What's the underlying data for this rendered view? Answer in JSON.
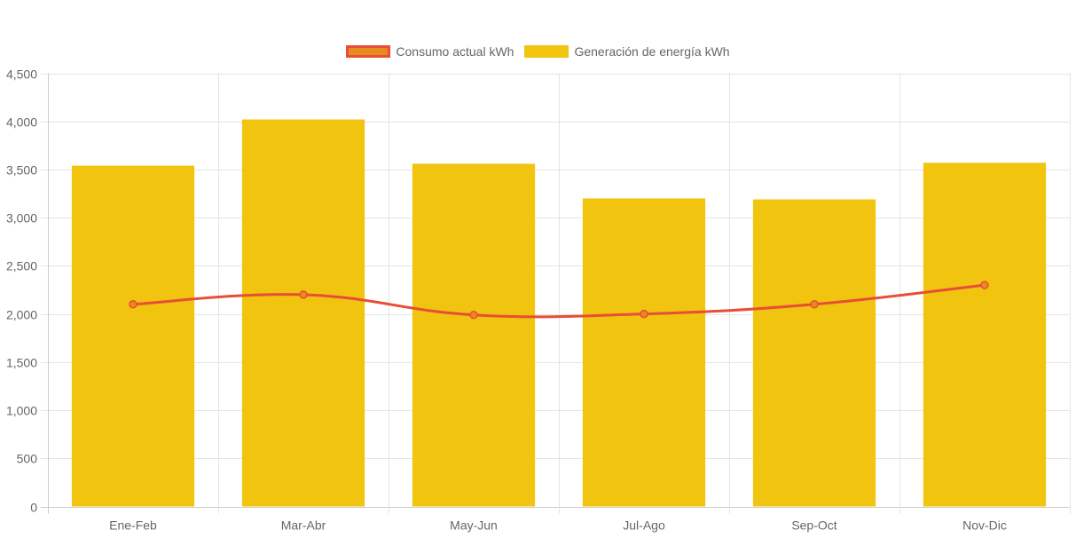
{
  "chart_data": {
    "type": "bar",
    "categories": [
      "Ene-Feb",
      "Mar-Abr",
      "May-Jun",
      "Jul-Ago",
      "Sep-Oct",
      "Nov-Dic"
    ],
    "series": [
      {
        "name": "Consumo actual kWh",
        "type": "line",
        "values": [
          2100,
          2200,
          1990,
          2000,
          2100,
          2300
        ],
        "color": "#e84e36",
        "fill": "#e88a1f"
      },
      {
        "name": "Generación de energía kWh",
        "type": "bar",
        "values": [
          3540,
          4020,
          3560,
          3200,
          3190,
          3570
        ],
        "color": "#f0c40f"
      }
    ],
    "y_ticks": [
      "0",
      "500",
      "1,000",
      "1,500",
      "2,000",
      "2,500",
      "3,000",
      "3,500",
      "4,000",
      "4,500"
    ],
    "ylim": [
      0,
      4500
    ],
    "grid": true,
    "legend_position": "top"
  }
}
